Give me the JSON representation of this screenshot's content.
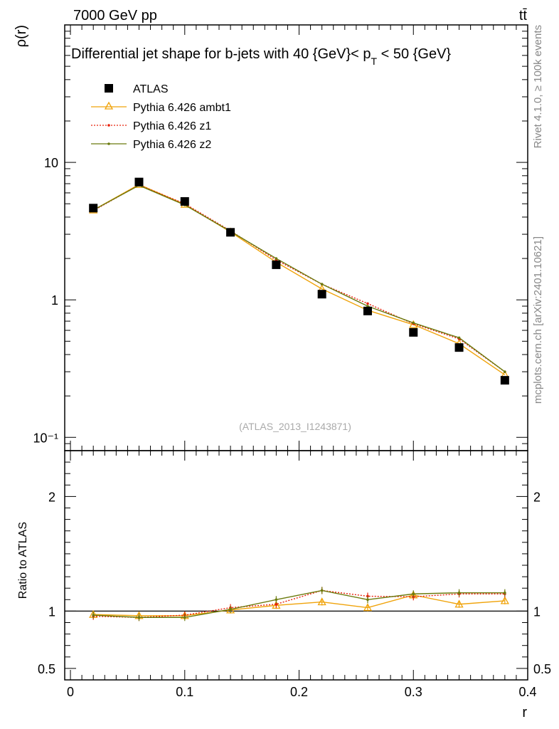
{
  "header": {
    "left_label": "7000 GeV pp",
    "right_label": "tt̄",
    "side_rivet": "Rivet 4.1.0, ≥ 100k events",
    "side_mcplots": "mcplots.cern.ch [arXiv:2401.10621]"
  },
  "chart_data": {
    "type": "line",
    "title": "Differential jet shape for b-jets with 40 {GeV}< p_T < 50 {GeV}",
    "title_parts": {
      "pre": "Differential jet shape for b-jets with 40 {GeV}< p",
      "sub": "T",
      "post": " < 50 {GeV}"
    },
    "watermark": "(ATLAS_2013_I1243871)",
    "xlabel": "r",
    "ylabel": "ρ(r)",
    "ratio_ylabel": "Ratio to ATLAS",
    "xlim": [
      -0.005,
      0.4
    ],
    "ylim": [
      0.08,
      100
    ],
    "yscale": "log",
    "ratio_ylim": [
      0.4,
      2.4
    ],
    "x": [
      0.02,
      0.06,
      0.1,
      0.14,
      0.18,
      0.22,
      0.26,
      0.3,
      0.34,
      0.38
    ],
    "x_ticks": [
      {
        "v": 0,
        "label": "0"
      },
      {
        "v": 0.1,
        "label": "0.1"
      },
      {
        "v": 0.2,
        "label": "0.2"
      },
      {
        "v": 0.3,
        "label": "0.3"
      },
      {
        "v": 0.4,
        "label": "0.4"
      }
    ],
    "y_ticks": [
      {
        "v": 0.1,
        "label": "10⁻¹"
      },
      {
        "v": 1,
        "label": "1"
      },
      {
        "v": 10,
        "label": "10"
      }
    ],
    "ratio_ticks": [
      {
        "v": 0.5,
        "label": "0.5"
      },
      {
        "v": 1,
        "label": "1"
      },
      {
        "v": 2,
        "label": "2"
      }
    ],
    "data": {
      "name": "ATLAS",
      "color": "#000000",
      "values": [
        4.65,
        7.2,
        5.2,
        3.1,
        1.8,
        1.1,
        0.83,
        0.58,
        0.45,
        0.26
      ]
    },
    "series": [
      {
        "name": "Pythia 6.426 ambt1",
        "color": "#f0a30a",
        "style": "solid",
        "marker": "triangle",
        "values": [
          4.5,
          6.9,
          4.95,
          3.12,
          1.88,
          1.2,
          0.84,
          0.66,
          0.48,
          0.285
        ],
        "ratio": [
          0.97,
          0.96,
          0.96,
          1.01,
          1.05,
          1.08,
          1.03,
          1.14,
          1.06,
          1.09
        ]
      },
      {
        "name": "Pythia 6.426 z1",
        "color": "#e8200a",
        "style": "dotted",
        "marker": "dot",
        "values": [
          4.45,
          6.85,
          5.0,
          3.18,
          1.95,
          1.3,
          0.94,
          0.67,
          0.52,
          0.3
        ],
        "ratio": [
          0.955,
          0.945,
          0.965,
          1.03,
          1.06,
          1.18,
          1.13,
          1.125,
          1.15,
          1.15
        ]
      },
      {
        "name": "Pythia 6.426 z2",
        "color": "#6b7b0e",
        "style": "solid",
        "marker": "dot",
        "values": [
          4.5,
          6.8,
          4.9,
          3.15,
          2.0,
          1.3,
          0.9,
          0.68,
          0.53,
          0.3
        ],
        "ratio": [
          0.965,
          0.945,
          0.945,
          1.015,
          1.1,
          1.18,
          1.1,
          1.15,
          1.16,
          1.16
        ]
      }
    ]
  }
}
